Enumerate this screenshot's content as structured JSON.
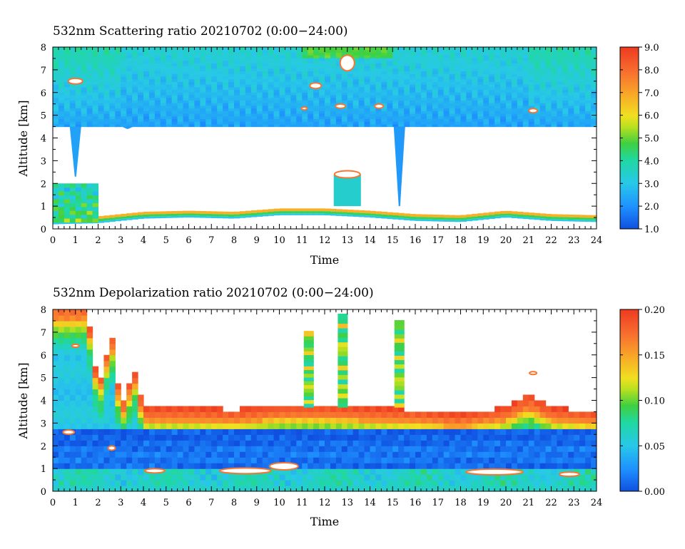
{
  "chart_data": [
    {
      "type": "heatmap",
      "title": "532nm Scattering ratio  20210702 (0:00−24:00)",
      "xlabel": "Time",
      "ylabel": "Altitude [km]",
      "xlim": [
        0,
        24
      ],
      "ylim": [
        0,
        8
      ],
      "x_ticks": [
        "0",
        "1",
        "2",
        "3",
        "4",
        "5",
        "6",
        "7",
        "8",
        "9",
        "10",
        "11",
        "12",
        "13",
        "14",
        "15",
        "16",
        "17",
        "18",
        "19",
        "20",
        "21",
        "22",
        "23",
        "24"
      ],
      "y_ticks": [
        "0",
        "1",
        "2",
        "3",
        "4",
        "5",
        "6",
        "7",
        "8"
      ],
      "colorbar": {
        "min": 1.0,
        "max": 9.0,
        "ticks": [
          "1.0",
          "2.0",
          "3.0",
          "4.0",
          "5.0",
          "6.0",
          "7.0",
          "8.0",
          "9.0"
        ]
      },
      "features": {
        "upper_layer_base_km": 4.5,
        "upper_layer_top_km": 8.0,
        "upper_layer_value_range": [
          1.6,
          3.5
        ],
        "boundary_layer_top_km_at_hour": [
          [
            0,
            0.5
          ],
          [
            2,
            0.55
          ],
          [
            4,
            0.75
          ],
          [
            6,
            0.8
          ],
          [
            8,
            0.75
          ],
          [
            10,
            0.9
          ],
          [
            12,
            0.9
          ],
          [
            14,
            0.8
          ],
          [
            16,
            0.65
          ],
          [
            18,
            0.6
          ],
          [
            20,
            0.8
          ],
          [
            22,
            0.65
          ],
          [
            24,
            0.6
          ]
        ],
        "low_cloud_0_2h_km": [
          0.3,
          2.0
        ],
        "cloud_at_13h_km": [
          1.0,
          2.4
        ],
        "column_at_1h_km": [
          2.3,
          4.5
        ],
        "column_at_15_3h_km": [
          1.0,
          4.5
        ]
      }
    },
    {
      "type": "heatmap",
      "title": "532nm Depolarization ratio  20210702 (0:00−24:00)",
      "xlabel": "Time",
      "ylabel": "Altitude [km]",
      "xlim": [
        0,
        24
      ],
      "ylim": [
        0,
        8
      ],
      "x_ticks": [
        "0",
        "1",
        "2",
        "3",
        "4",
        "5",
        "6",
        "7",
        "8",
        "9",
        "10",
        "11",
        "12",
        "13",
        "14",
        "15",
        "16",
        "17",
        "18",
        "19",
        "20",
        "21",
        "22",
        "23",
        "24"
      ],
      "y_ticks": [
        "0",
        "1",
        "2",
        "3",
        "4",
        "5",
        "6",
        "7",
        "8"
      ],
      "colorbar": {
        "min": 0.0,
        "max": 0.2,
        "ticks": [
          "0.00",
          "0.05",
          "0.10",
          "0.15",
          "0.20"
        ]
      },
      "features": {
        "high_depol_top_km_at_hour": [
          [
            0,
            8
          ],
          [
            1,
            8
          ],
          [
            1.5,
            8
          ],
          [
            2,
            4.5
          ],
          [
            2.6,
            6.8
          ],
          [
            3,
            3.6
          ],
          [
            3.6,
            5.2
          ],
          [
            4,
            3.6
          ],
          [
            6,
            3.6
          ],
          [
            8,
            3.5
          ],
          [
            10,
            3.7
          ],
          [
            12,
            3.7
          ],
          [
            14,
            3.6
          ],
          [
            16,
            3.5
          ],
          [
            18,
            3.3
          ],
          [
            20,
            3.6
          ],
          [
            21,
            4.1
          ],
          [
            22,
            3.6
          ],
          [
            24,
            3.4
          ]
        ],
        "low_depol_layer_km": [
          1.0,
          2.7
        ],
        "plumes_hours": [
          11.3,
          12.8,
          15.3
        ]
      }
    }
  ]
}
